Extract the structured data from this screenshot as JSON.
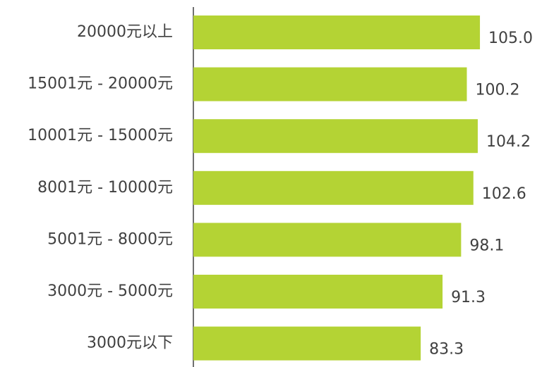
{
  "chart_data": {
    "type": "barh",
    "categories": [
      "20000元以上",
      "15001元 - 20000元",
      "10001元 - 15000元",
      "8001元 - 10000元",
      "5001元 - 8000元",
      "3000元 - 5000元",
      "3000元以下"
    ],
    "values": [
      105.0,
      100.2,
      104.2,
      102.6,
      98.1,
      91.3,
      83.3
    ],
    "value_labels": [
      "105.0",
      "100.2",
      "104.2",
      "102.6",
      "98.1",
      "91.3",
      "83.3"
    ],
    "color": "#b4d334",
    "xlim": [
      0,
      128
    ]
  }
}
